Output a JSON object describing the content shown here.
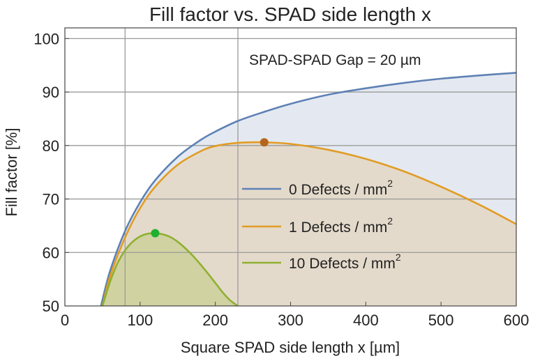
{
  "chart_data": {
    "type": "area",
    "title": "Fill factor vs. SPAD side length x",
    "xlabel": "Square SPAD side length x [µm]",
    "ylabel": "Fill factor [%]",
    "xlim": [
      0,
      600
    ],
    "ylim": [
      50,
      102
    ],
    "xticks": [
      "0",
      "100",
      "200",
      "300",
      "400",
      "500",
      "600"
    ],
    "yticks": [
      "50",
      "60",
      "70",
      "80",
      "90",
      "100"
    ],
    "gridlines_x": [
      80,
      230
    ],
    "gridlines_y": [
      60,
      70,
      80,
      90,
      100
    ],
    "annotation": "SPAD-SPAD Gap = 20 µm",
    "legend_placement": "center",
    "series": [
      {
        "name": "0 Defects / mm",
        "superscript": "2",
        "color": "#5e81b5",
        "fill": "#dfe5ef",
        "x": [
          48,
          60,
          80,
          100,
          120,
          150,
          180,
          200,
          230,
          265,
          300,
          350,
          400,
          450,
          500,
          550,
          600
        ],
        "y": [
          50,
          56.5,
          64,
          69.4,
          73.5,
          77.9,
          81.0,
          82.6,
          84.6,
          86.3,
          87.8,
          89.5,
          90.7,
          91.7,
          92.5,
          93.1,
          93.6
        ]
      },
      {
        "name": "1 Defects / mm",
        "superscript": "2",
        "color": "#e19c24",
        "fill": "#e4d7c4",
        "x": [
          50,
          60,
          80,
          100,
          120,
          150,
          180,
          200,
          230,
          265,
          300,
          350,
          400,
          450,
          500,
          550,
          600
        ],
        "y": [
          50,
          55.5,
          62.8,
          68.3,
          72.3,
          76.4,
          78.9,
          79.9,
          80.5,
          80.6,
          80.3,
          79.2,
          77.5,
          75.2,
          72.3,
          69.0,
          65.3
        ]
      },
      {
        "name": "10 Defects / mm",
        "superscript": "2",
        "color": "#8fb032",
        "fill": "#cdd09a",
        "x": [
          50,
          60,
          70,
          80,
          90,
          100,
          110,
          120,
          130,
          140,
          150,
          160,
          170,
          180,
          190,
          200,
          210,
          220,
          230
        ],
        "y": [
          50,
          54.5,
          58.0,
          60.4,
          62.0,
          63.0,
          63.5,
          63.6,
          63.4,
          62.9,
          62.0,
          60.8,
          59.4,
          57.8,
          56.1,
          54.3,
          52.5,
          51.0,
          50
        ]
      }
    ],
    "markers": [
      {
        "x": 265,
        "y": 80.6,
        "color": "#b5651d"
      },
      {
        "x": 120,
        "y": 63.6,
        "color": "#1fb02f"
      }
    ]
  }
}
